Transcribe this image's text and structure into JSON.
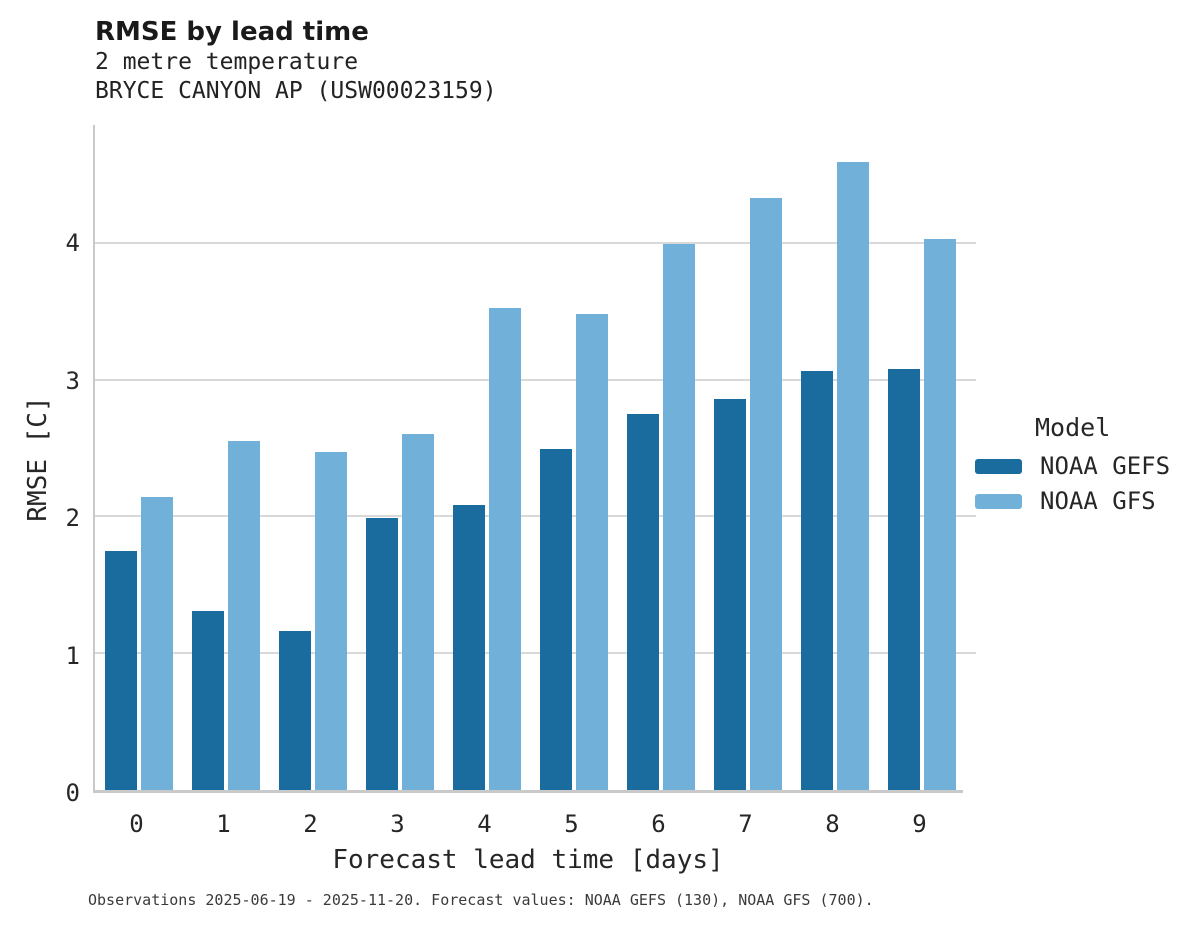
{
  "header": {
    "title": "RMSE by lead time",
    "subtitle1": "2 metre temperature",
    "subtitle2": "BRYCE CANYON AP (USW00023159)"
  },
  "legend": {
    "title": "Model"
  },
  "caption": "Observations 2025-06-19 - 2025-11-20. Forecast values: NOAA GEFS (130), NOAA GFS (700).",
  "colors": {
    "gefs": "#1A6C9E",
    "gfs": "#71B0D9",
    "gridline": "#D9D9D9",
    "spine": "#C9C9C9",
    "text": "#262626"
  },
  "chart_data": {
    "type": "bar",
    "title": "RMSE by lead time",
    "subtitle": [
      "2 metre temperature",
      "BRYCE CANYON AP (USW00023159)"
    ],
    "xlabel": "Forecast lead time [days]",
    "ylabel": "RMSE [C]",
    "categories": [
      "0",
      "1",
      "2",
      "3",
      "4",
      "5",
      "6",
      "7",
      "8",
      "9"
    ],
    "series": [
      {
        "name": "NOAA GEFS",
        "color": "#1A6C9E",
        "values": [
          1.75,
          1.31,
          1.16,
          1.99,
          2.08,
          2.49,
          2.75,
          2.86,
          3.06,
          3.08
        ]
      },
      {
        "name": "NOAA GFS",
        "color": "#71B0D9",
        "values": [
          2.14,
          2.55,
          2.47,
          2.6,
          3.52,
          3.48,
          3.99,
          4.33,
          4.59,
          4.03
        ]
      }
    ],
    "ylim": [
      0,
      4.86
    ],
    "yticks": [
      0,
      1,
      2,
      3,
      4
    ],
    "grid": "horizontal-only",
    "legend_title": "Model",
    "legend_position": "right",
    "caption": "Observations 2025-06-19 - 2025-11-20. Forecast values: NOAA GEFS (130), NOAA GFS (700)."
  }
}
